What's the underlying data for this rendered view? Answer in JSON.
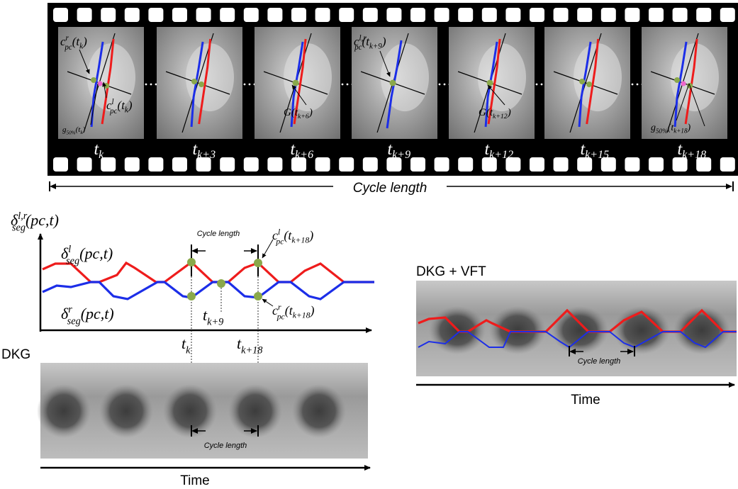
{
  "film_strip": {
    "frame_labels": [
      {
        "base": "t",
        "sub": "k"
      },
      {
        "base": "t",
        "sub": "k+3"
      },
      {
        "base": "t",
        "sub": "k+6"
      },
      {
        "base": "t",
        "sub": "k+9"
      },
      {
        "base": "t",
        "sub": "k+12"
      },
      {
        "base": "t",
        "sub": "k+15"
      },
      {
        "base": "t",
        "sub": "k+18"
      }
    ],
    "annotations": {
      "f1_top": "c^r_pc(t_k)",
      "f1_mid": "c^l_pc(t_k)",
      "f1_bottom": "g_50%(t_k)",
      "f3": "G(t_k+6)",
      "f4": "c^l,r_pc(t_k+9)",
      "f5": "G(t_k+12)",
      "f7": "g_50%(t_k+18)"
    },
    "cycle_length_label": "Cycle length"
  },
  "signal_plot": {
    "y_label": "δ^l,r_seg(pc,t)",
    "upper_curve_label": "δ^l_seg(pc,t)",
    "lower_curve_label": "δ^r_seg(pc,t)",
    "x_tick_tk": "t_k",
    "x_tick_tk18": "t_k+18",
    "mid_label": "t_k+9",
    "cycle_length_label": "Cycle length",
    "annot_left": "c^l_pc(t_k+18)",
    "annot_right": "c^r_pc(t_k+18)",
    "colors": {
      "left": "#ee1c1c",
      "right": "#1c2ee8",
      "marker": "#8aa84a"
    }
  },
  "dkg_panel": {
    "title": "DKG",
    "cycle_length_label": "Cycle length",
    "time_label": "Time"
  },
  "dkg_vft_panel": {
    "title": "DKG + VFT",
    "cycle_length_label": "Cycle length",
    "time_label": "Time"
  }
}
